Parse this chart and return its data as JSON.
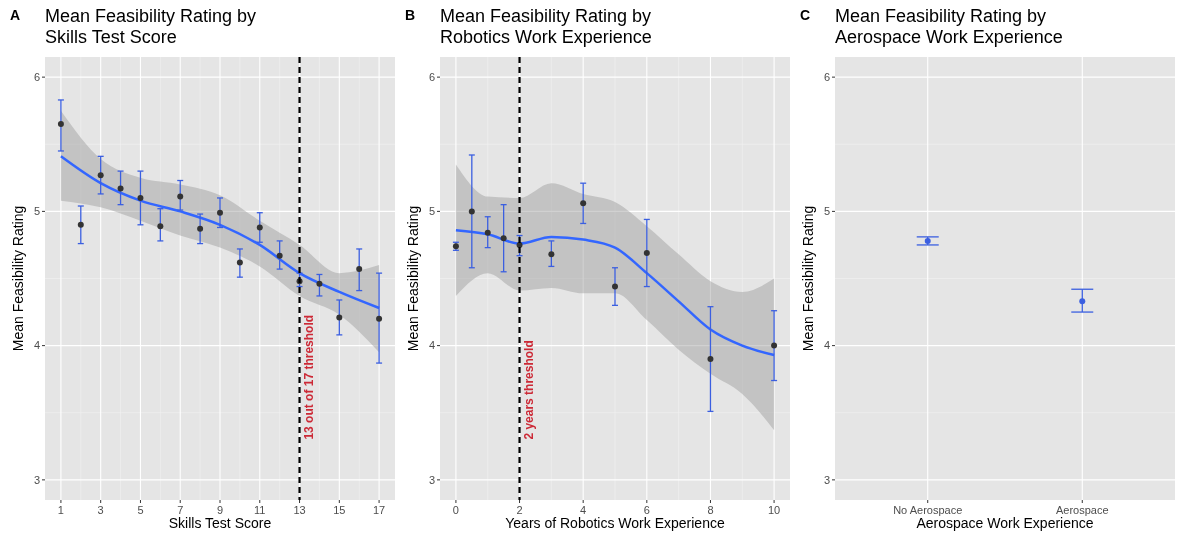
{
  "chart_data": [
    {
      "type": "scatter",
      "title": "Mean Feasibility Rating by\nSkills Test Score",
      "xlabel": "Skills Test Score",
      "ylabel": "Mean Feasibility Rating",
      "annotations": [
        "A"
      ],
      "x": [
        1,
        2,
        3,
        4,
        5,
        6,
        7,
        8,
        9,
        10,
        11,
        12,
        13,
        14,
        15,
        16,
        17
      ],
      "series": [
        {
          "color": "#333333",
          "values": [
            5.65,
            4.9,
            5.27,
            5.17,
            5.1,
            4.89,
            5.11,
            4.87,
            4.99,
            4.62,
            4.88,
            4.67,
            4.48,
            4.46,
            4.21,
            4.57,
            4.2
          ],
          "errors": [
            [
              5.45,
              5.83
            ],
            [
              4.76,
              5.04
            ],
            [
              5.13,
              5.41
            ],
            [
              5.05,
              5.3
            ],
            [
              4.9,
              5.3
            ],
            [
              4.78,
              5.02
            ],
            [
              5.01,
              5.23
            ],
            [
              4.76,
              4.98
            ],
            [
              4.88,
              5.1
            ],
            [
              4.51,
              4.72
            ],
            [
              4.77,
              4.99
            ],
            [
              4.57,
              4.78
            ],
            [
              4.44,
              4.54
            ],
            [
              4.37,
              4.53
            ],
            [
              4.08,
              4.34
            ],
            [
              4.41,
              4.72
            ],
            [
              3.87,
              4.54
            ]
          ]
        },
        {
          "type": "line",
          "marker": "none",
          "color": "#3366ff",
          "x": [
            1,
            3,
            5,
            7,
            9,
            11,
            13,
            15,
            17
          ],
          "values": [
            5.41,
            5.21,
            5.08,
            5.0,
            4.9,
            4.75,
            4.54,
            4.4,
            4.28
          ],
          "lower": [
            5.08,
            5.03,
            4.93,
            4.82,
            4.73,
            4.59,
            4.37,
            4.23,
            3.95
          ],
          "upper": [
            5.75,
            5.39,
            5.25,
            5.2,
            5.12,
            4.93,
            4.75,
            4.54,
            4.6
          ]
        }
      ],
      "xlim": [
        0.2,
        17.8
      ],
      "ylim": [
        2.85,
        6.15
      ],
      "xticks": [
        1,
        3,
        5,
        7,
        9,
        11,
        13,
        15,
        17
      ],
      "yticks": [
        3,
        4,
        5,
        6
      ],
      "grid": true,
      "marker": "circle",
      "ref_lines": [
        {
          "axis": "x",
          "value": 13,
          "label": "13 out of 17 threshold",
          "color": "#000000",
          "line_style": "dashed"
        }
      ]
    },
    {
      "type": "scatter",
      "title": "Mean Feasibility Rating by\nRobotics Work Experience",
      "xlabel": "Years of Robotics Work Experience",
      "ylabel": "Mean Feasibility Rating",
      "annotations": [
        "B"
      ],
      "x": [
        0,
        0.5,
        1,
        1.5,
        2,
        3,
        4,
        5,
        6,
        8,
        10
      ],
      "series": [
        {
          "color": "#333333",
          "values": [
            4.74,
            5.0,
            4.84,
            4.8,
            4.75,
            4.68,
            5.06,
            4.44,
            4.69,
            3.9,
            4.0
          ],
          "errors": [
            [
              4.71,
              4.77
            ],
            [
              4.58,
              5.42
            ],
            [
              4.73,
              4.96
            ],
            [
              4.55,
              5.05
            ],
            [
              4.67,
              4.82
            ],
            [
              4.59,
              4.78
            ],
            [
              4.91,
              5.21
            ],
            [
              4.3,
              4.58
            ],
            [
              4.44,
              4.94
            ],
            [
              3.51,
              4.29
            ],
            [
              3.74,
              4.26
            ]
          ]
        },
        {
          "type": "line",
          "marker": "none",
          "color": "#3366ff",
          "x": [
            0,
            1,
            2,
            3,
            4,
            5,
            6,
            7,
            8,
            9,
            10
          ],
          "values": [
            4.86,
            4.83,
            4.76,
            4.81,
            4.79,
            4.73,
            4.54,
            4.33,
            4.12,
            4.0,
            3.93
          ],
          "lower": [
            4.37,
            4.54,
            4.41,
            4.43,
            4.39,
            4.39,
            4.19,
            3.97,
            3.79,
            3.64,
            3.37
          ],
          "upper": [
            5.35,
            5.11,
            5.1,
            5.21,
            5.13,
            5.07,
            4.89,
            4.68,
            4.48,
            4.4,
            4.5
          ]
        }
      ],
      "xlim": [
        -0.5,
        10.5
      ],
      "ylim": [
        2.85,
        6.15
      ],
      "xticks": [
        0,
        2,
        4,
        6,
        8,
        10
      ],
      "yticks": [
        3,
        4,
        5,
        6
      ],
      "grid": true,
      "marker": "circle",
      "ref_lines": [
        {
          "axis": "x",
          "value": 2,
          "label": "2 years threshold",
          "color": "#000000",
          "line_style": "dashed"
        }
      ]
    },
    {
      "type": "scatter",
      "title": "Mean Feasibility Rating by\nAerospace Work Experience",
      "xlabel": "Aerospace Work Experience",
      "ylabel": "Mean Feasibility Rating",
      "annotations": [
        "C"
      ],
      "categories": [
        "No Aerospace",
        "Aerospace"
      ],
      "series": [
        {
          "color": "#3b5fe0",
          "values": [
            4.78,
            4.33
          ],
          "errors": [
            [
              4.75,
              4.81
            ],
            [
              4.25,
              4.42
            ]
          ]
        }
      ],
      "ylim": [
        2.85,
        6.15
      ],
      "yticks": [
        3,
        4,
        5,
        6
      ],
      "grid": true,
      "marker": "circle"
    }
  ]
}
